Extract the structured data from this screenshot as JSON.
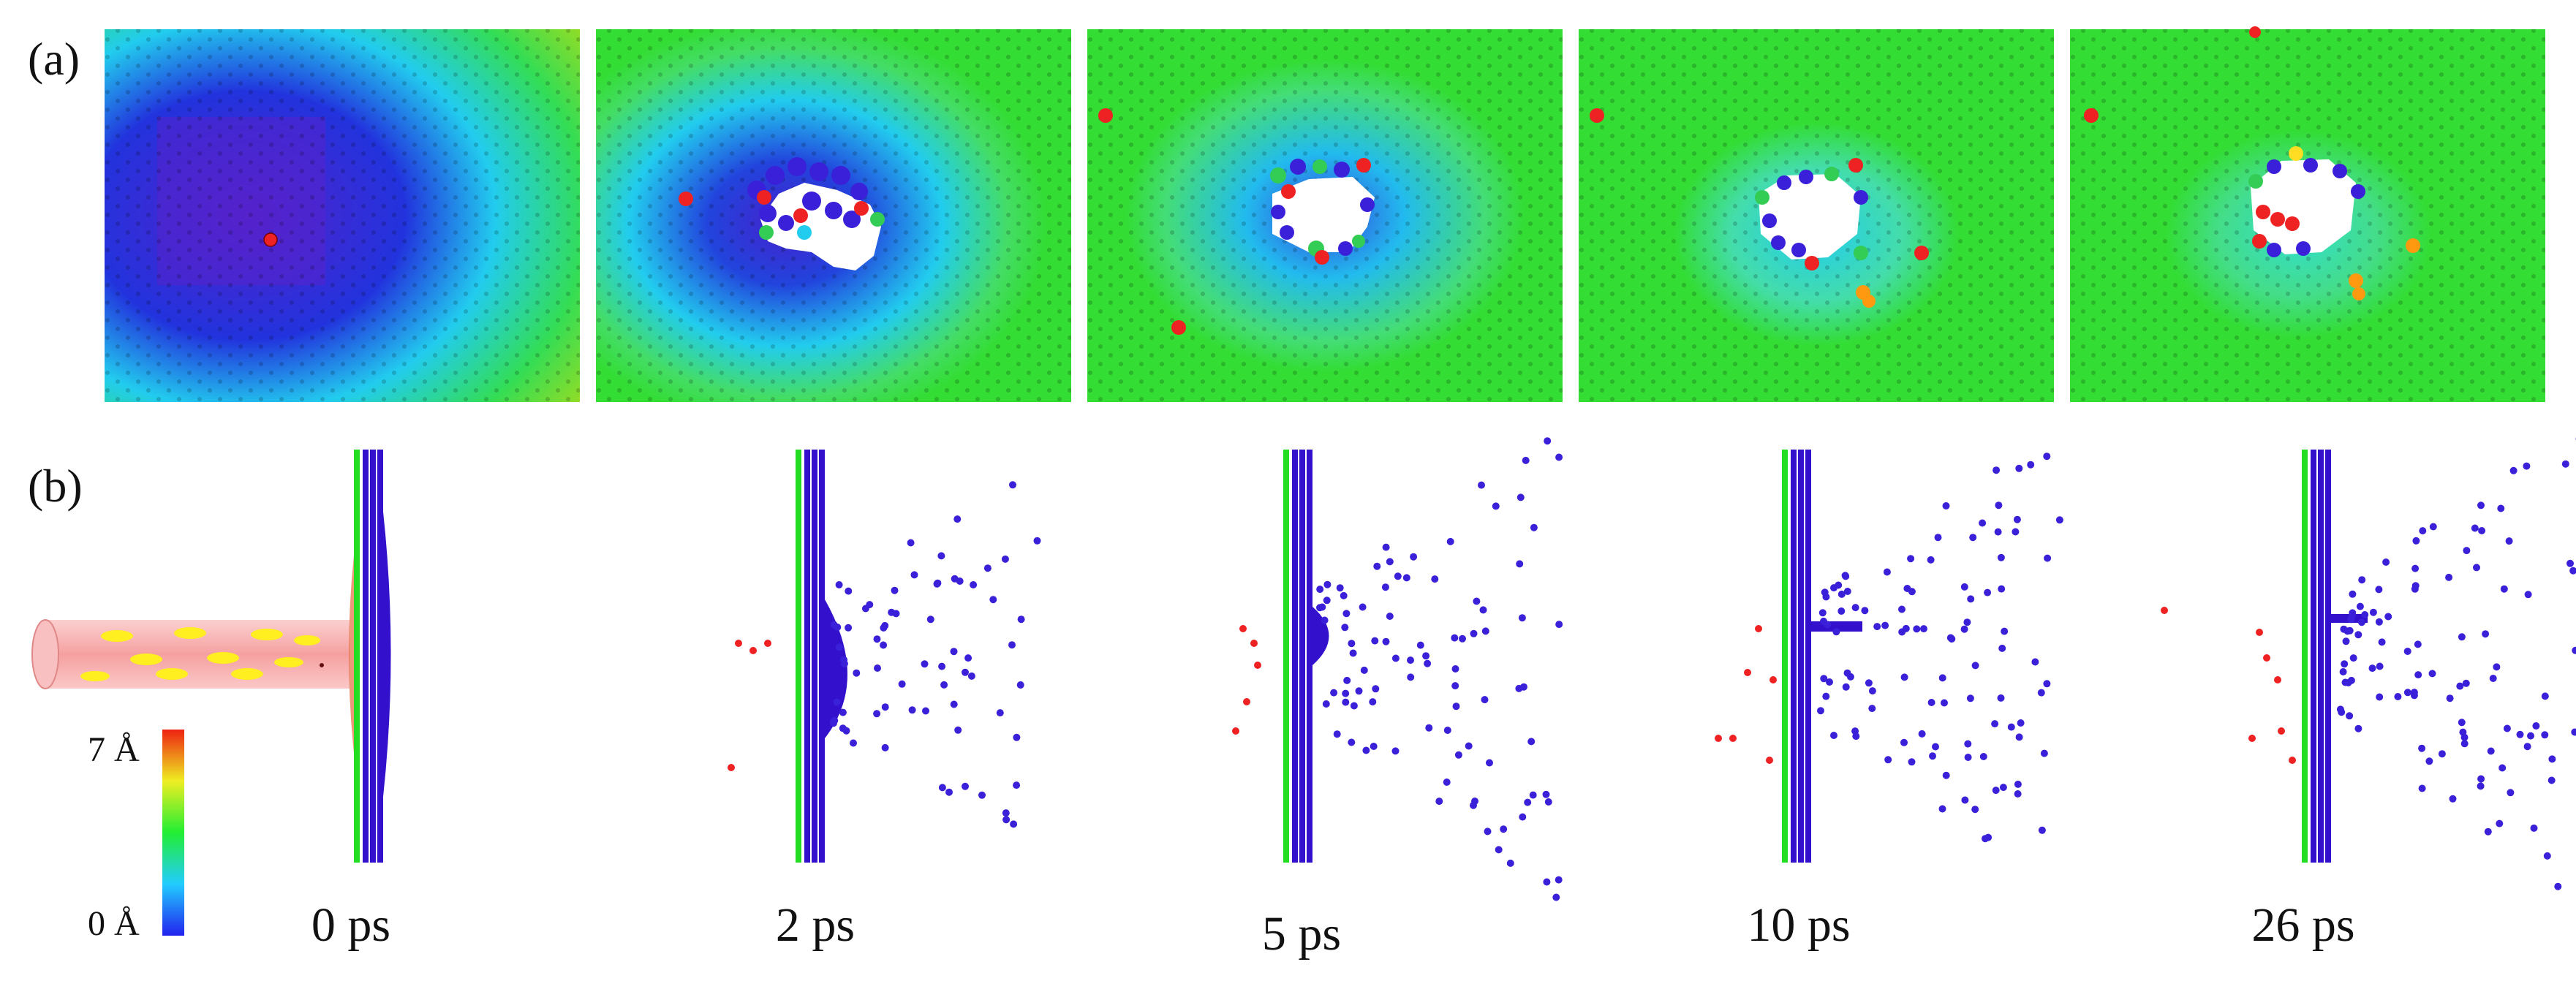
{
  "panel_a_label": "(a)",
  "panel_b_label": "(b)",
  "colorbar": {
    "max_label": "7 Å",
    "min_label": "0 Å"
  },
  "time_labels": [
    "0 ps",
    "2 ps",
    "5 ps",
    "10 ps",
    "26 ps"
  ],
  "colors": {
    "layer_green": "#22dd22",
    "layer_blue": "#3311cc",
    "atom_red": "#ee2222",
    "atom_blue": "#3a20d8",
    "atom_orange": "#ff9910",
    "beam_pink": "#f8b4b4",
    "ion_yellow": "#ffee20"
  }
}
